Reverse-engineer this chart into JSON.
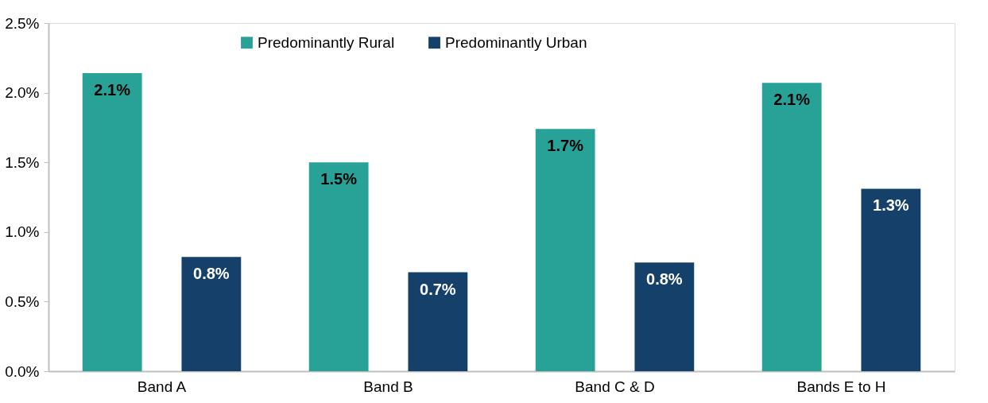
{
  "chart_data": {
    "type": "bar",
    "categories": [
      "Band A",
      "Band B",
      "Band C & D",
      "Bands E to H"
    ],
    "series": [
      {
        "name": "Predominantly Rural",
        "color": "#28a197",
        "values": [
          2.14,
          1.5,
          1.74,
          2.07
        ],
        "value_labels": [
          "2.1%",
          "1.5%",
          "1.7%",
          "2.1%"
        ]
      },
      {
        "name": "Predominantly Urban",
        "color": "#15406a",
        "values": [
          0.82,
          0.71,
          0.78,
          1.31
        ],
        "value_labels": [
          "0.8%",
          "0.7%",
          "0.8%",
          "1.3%"
        ]
      }
    ],
    "ylim": [
      0,
      2.5
    ],
    "yticks": [
      {
        "value": 0,
        "label": "0.0%"
      },
      {
        "value": 0.5,
        "label": "0.5%"
      },
      {
        "value": 1,
        "label": "1.0%"
      },
      {
        "value": 1.5,
        "label": "1.5%"
      },
      {
        "value": 2,
        "label": "2.0%"
      },
      {
        "value": 2.5,
        "label": "2.5%"
      }
    ],
    "grid": false,
    "legend": "top"
  }
}
